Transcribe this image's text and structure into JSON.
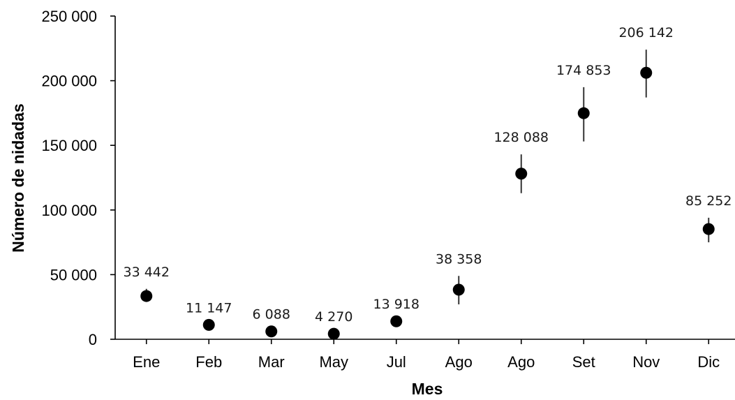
{
  "chart_data": {
    "type": "scatter",
    "title": "",
    "xlabel": "Mes",
    "ylabel": "Número de nidadas",
    "ylim": [
      0,
      250000
    ],
    "yticks": [
      0,
      50000,
      100000,
      150000,
      200000,
      250000
    ],
    "ytick_labels": [
      "0",
      "50 000",
      "100 000",
      "150 000",
      "200 000",
      "250 000"
    ],
    "grid": false,
    "legend": "none",
    "categories": [
      "Ene",
      "Feb",
      "Mar",
      "May",
      "Jul",
      "Ago",
      "Ago",
      "Set",
      "Nov",
      "Dic"
    ],
    "series": [
      {
        "values": [
          33442,
          11147,
          6088,
          4270,
          13918,
          38358,
          128088,
          174853,
          206142,
          85252
        ],
        "data_labels": [
          "33 442",
          "11 147",
          "6 088",
          "4 270",
          "13 918",
          "38 358",
          "128 088",
          "174 853",
          "206 142",
          "85 252"
        ],
        "error_low": [
          29000,
          11147,
          6088,
          4270,
          13918,
          27000,
          113000,
          153000,
          187000,
          75000
        ],
        "error_high": [
          39000,
          11147,
          6088,
          4270,
          13918,
          49000,
          143000,
          195000,
          224000,
          94000
        ],
        "color": "#000000"
      }
    ]
  }
}
